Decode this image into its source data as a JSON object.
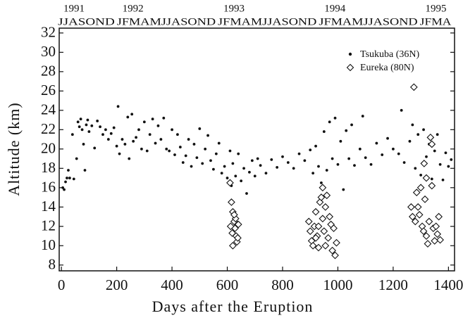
{
  "chart_data": {
    "type": "scatter",
    "xlabel": "Days after the Eruption",
    "ylabel": "Altitude (km)",
    "xlim": [
      -8,
      1422
    ],
    "ylim": [
      7.4,
      32.5
    ],
    "xticks": [
      0,
      200,
      400,
      600,
      800,
      1000,
      1200,
      1400
    ],
    "yticks": [
      8,
      10,
      12,
      14,
      16,
      18,
      20,
      22,
      24,
      26,
      28,
      30,
      32
    ],
    "top_years": [
      "1991",
      "1992",
      "1993",
      "1994",
      "1995"
    ],
    "top_months": [
      "JJASOND",
      "JFMAMJJASOND",
      "JFMAMJJASOND",
      "JFMAMJJASOND",
      "JFMA"
    ],
    "legend": "upper right",
    "series": [
      {
        "name": "Tsukuba (36N)",
        "color": "#111111",
        "marker": "dot",
        "x": [
          5,
          10,
          15,
          20,
          25,
          30,
          40,
          45,
          55,
          60,
          65,
          70,
          75,
          80,
          85,
          90,
          95,
          100,
          110,
          120,
          130,
          140,
          150,
          160,
          170,
          180,
          190,
          200,
          205,
          210,
          220,
          230,
          240,
          245,
          255,
          260,
          270,
          280,
          290,
          300,
          310,
          320,
          330,
          340,
          350,
          360,
          370,
          380,
          390,
          400,
          410,
          420,
          430,
          440,
          450,
          460,
          470,
          480,
          490,
          500,
          510,
          520,
          530,
          540,
          550,
          560,
          570,
          580,
          590,
          600,
          610,
          615,
          620,
          630,
          640,
          650,
          660,
          670,
          680,
          690,
          700,
          710,
          720,
          740,
          760,
          780,
          800,
          820,
          840,
          860,
          880,
          900,
          910,
          920,
          930,
          940,
          950,
          960,
          970,
          980,
          990,
          1000,
          1010,
          1020,
          1030,
          1040,
          1050,
          1060,
          1080,
          1090,
          1100,
          1120,
          1140,
          1160,
          1180,
          1200,
          1220,
          1230,
          1240,
          1260,
          1270,
          1280,
          1290,
          1300,
          1310,
          1320,
          1330,
          1340,
          1350,
          1360,
          1370,
          1380,
          1390,
          1400,
          1410
        ],
        "values": [
          16,
          15.8,
          16.6,
          17,
          17.8,
          17,
          21.5,
          16.9,
          19,
          22.8,
          22.3,
          23.1,
          22,
          20.5,
          17.8,
          22.5,
          23,
          21.8,
          22.4,
          20.1,
          22.9,
          22.3,
          21.5,
          22,
          21,
          21.6,
          22.2,
          20.3,
          24.4,
          19.5,
          21,
          20.5,
          23.3,
          19,
          23.6,
          20.8,
          21.2,
          22,
          20,
          22.8,
          19.8,
          21.5,
          23.1,
          20.6,
          22.4,
          21,
          23.2,
          20,
          19.8,
          22,
          19.4,
          21.5,
          20.2,
          18.6,
          19.3,
          21,
          18.2,
          20.5,
          19.1,
          22.1,
          18.5,
          20,
          21.4,
          18.8,
          17.9,
          19.5,
          20.6,
          17.5,
          18.2,
          17,
          19.8,
          16.2,
          18.5,
          17.2,
          19.5,
          16.7,
          18,
          15.4,
          17.6,
          18.8,
          17.2,
          19,
          18.3,
          17.5,
          18.9,
          18.1,
          19.2,
          18.6,
          18,
          19.5,
          18.8,
          19.9,
          17.5,
          20.3,
          18.2,
          16.5,
          21.8,
          17.8,
          22.8,
          19,
          23.2,
          18.4,
          20.8,
          15.8,
          21.9,
          19,
          22.5,
          18.3,
          20,
          23.4,
          19.1,
          18.4,
          20.6,
          19.4,
          21.1,
          20,
          19.5,
          24,
          18.6,
          20.8,
          22.5,
          18,
          21.5,
          17.3,
          22,
          19.2,
          20.5,
          16.9,
          19.8,
          21.5,
          18.4,
          16.8,
          19.6,
          18.2,
          18.9
        ]
      },
      {
        "name": "Eureka (80N)",
        "color": "#111111",
        "marker": "diamond",
        "x": [
          610,
          615,
          620,
          625,
          628,
          632,
          635,
          620,
          640,
          630,
          612,
          638,
          625,
          618,
          895,
          900,
          905,
          910,
          915,
          920,
          925,
          930,
          935,
          940,
          945,
          950,
          955,
          960,
          965,
          970,
          975,
          980,
          985,
          990,
          995,
          945,
          955,
          930,
          920,
          1275,
          1265,
          1270,
          1280,
          1285,
          1290,
          1295,
          1300,
          1305,
          1310,
          1315,
          1320,
          1325,
          1330,
          1335,
          1340,
          1345,
          1350,
          1355,
          1360,
          1365,
          1370,
          1312,
          1320,
          1340
        ],
        "values": [
          16.5,
          14.5,
          13.5,
          12.5,
          11.8,
          11,
          10.4,
          10,
          12.2,
          12.8,
          12,
          10.8,
          13.2,
          11.3,
          12.5,
          11.5,
          10.5,
          10,
          12,
          13.5,
          11,
          9.8,
          14.5,
          15,
          12.8,
          11.5,
          14,
          15.2,
          10.8,
          13,
          12.2,
          9.5,
          11.8,
          9,
          10.3,
          16,
          10,
          12,
          10.8,
          26.4,
          14,
          13,
          12.5,
          15.5,
          14,
          13.2,
          16,
          12,
          11.5,
          14.8,
          11,
          10.2,
          12.5,
          21.2,
          20.5,
          11.8,
          10.5,
          12,
          11.2,
          13,
          10.6,
          18.5,
          17,
          16.2
        ]
      }
    ]
  }
}
